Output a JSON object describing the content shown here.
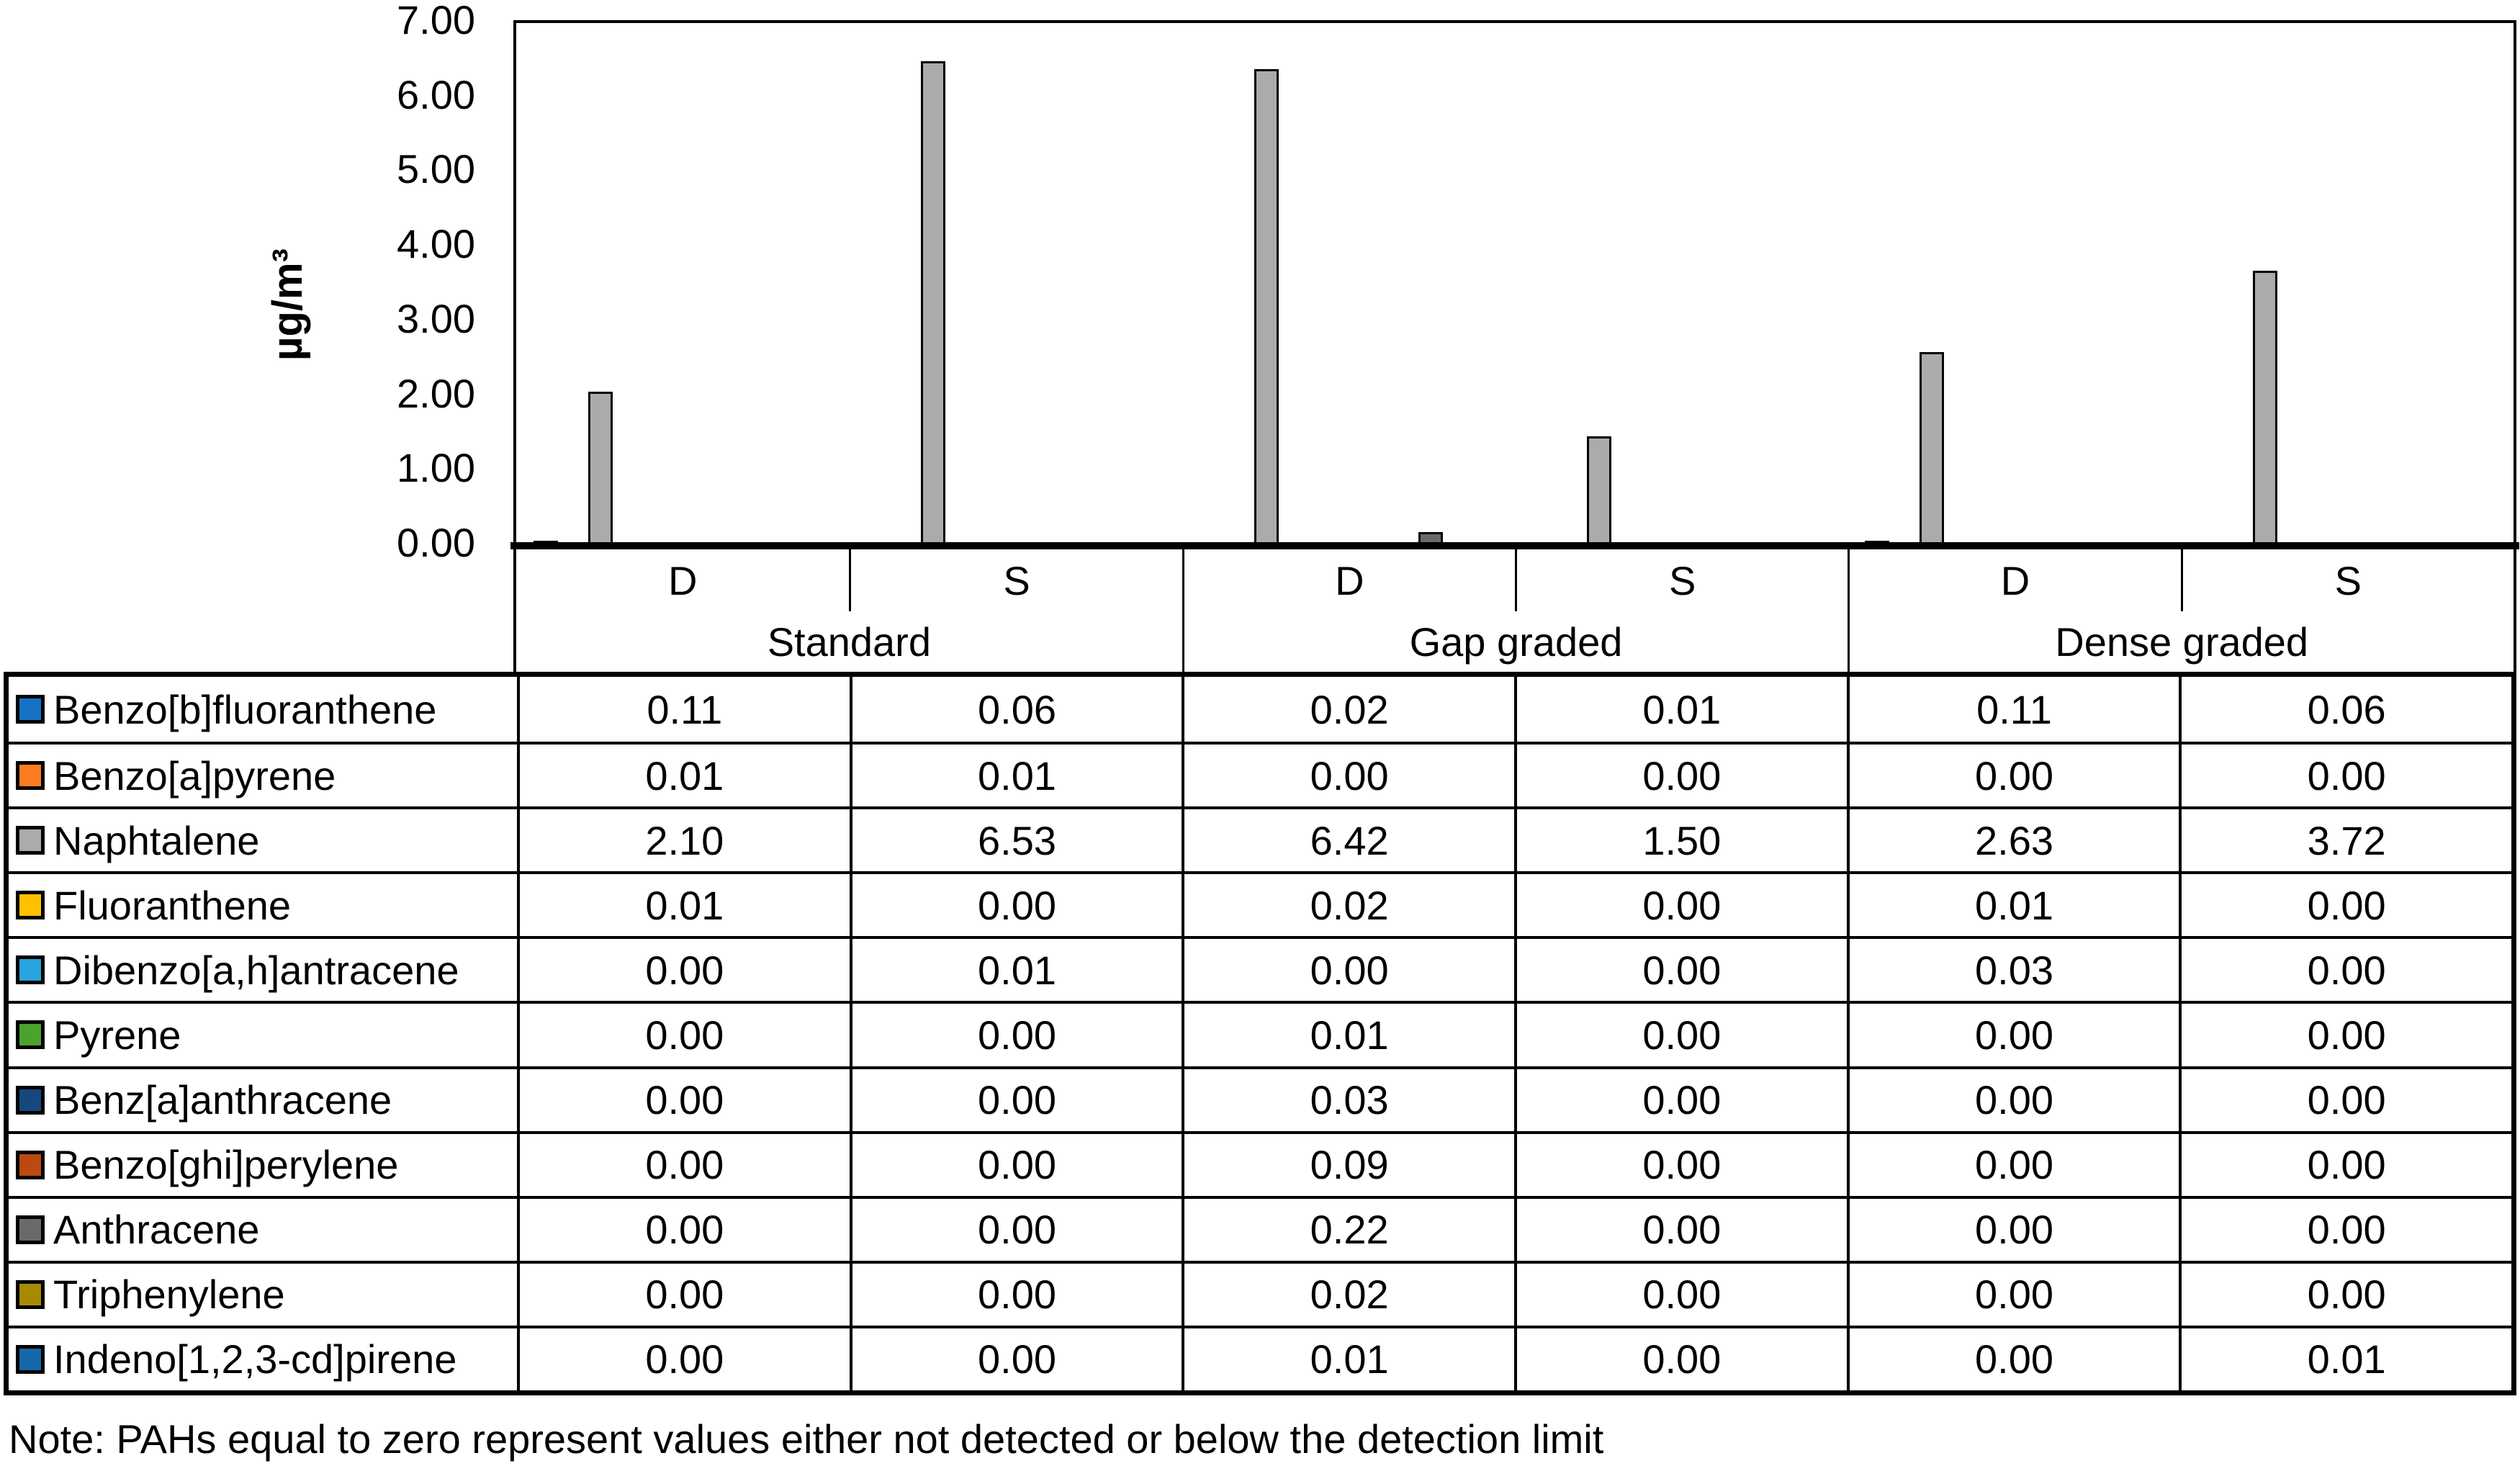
{
  "note": "Note: PAHs equal to zero represent values either not detected or below the detection limit",
  "chart_data": {
    "type": "bar",
    "title": "",
    "ylabel": "µg/m³",
    "xlabel": "",
    "ylim": [
      0,
      7
    ],
    "grid": false,
    "legend_position": "table-left-column",
    "yticks": [
      "7.00",
      "6.00",
      "5.00",
      "4.00",
      "3.00",
      "2.00",
      "1.00",
      "0.00"
    ],
    "condition_labels": [
      "D",
      "S",
      "D",
      "S",
      "D",
      "S"
    ],
    "pavement_labels": [
      "Standard",
      "Gap graded",
      "Dense graded"
    ],
    "value_decimals": 2,
    "series": [
      {
        "name": "Benzo[b]fluoranthene",
        "color": "#1572C6",
        "values": [
          0.11,
          0.06,
          0.02,
          0.01,
          0.11,
          0.06
        ]
      },
      {
        "name": "Benzo[a]pyrene",
        "color": "#F97D1E",
        "values": [
          0.01,
          0.01,
          0.0,
          0.0,
          0.0,
          0.0
        ]
      },
      {
        "name": "Naphtalene",
        "color": "#ABABAB",
        "values": [
          2.1,
          6.53,
          6.42,
          1.5,
          2.63,
          3.72
        ]
      },
      {
        "name": "Fluoranthene",
        "color": "#FFC000",
        "values": [
          0.01,
          0.0,
          0.02,
          0.0,
          0.01,
          0.0
        ]
      },
      {
        "name": "Dibenzo[a,h]antracene",
        "color": "#2AA4DE",
        "values": [
          0.0,
          0.01,
          0.0,
          0.0,
          0.03,
          0.0
        ]
      },
      {
        "name": "Pyrene",
        "color": "#4BA32E",
        "values": [
          0.0,
          0.0,
          0.01,
          0.0,
          0.0,
          0.0
        ]
      },
      {
        "name": "Benz[a]anthracene",
        "color": "#15497E",
        "values": [
          0.0,
          0.0,
          0.03,
          0.0,
          0.0,
          0.0
        ]
      },
      {
        "name": "Benzo[ghi]perylene",
        "color": "#BC4A10",
        "values": [
          0.0,
          0.0,
          0.09,
          0.0,
          0.0,
          0.0
        ]
      },
      {
        "name": "Anthracene",
        "color": "#6A6A6A",
        "values": [
          0.0,
          0.0,
          0.22,
          0.0,
          0.0,
          0.0
        ]
      },
      {
        "name": "Triphenylene",
        "color": "#A88A00",
        "values": [
          0.0,
          0.0,
          0.02,
          0.0,
          0.0,
          0.0
        ]
      },
      {
        "name": "Indeno[1,2,3-cd]pirene",
        "color": "#1668A8",
        "values": [
          0.0,
          0.0,
          0.01,
          0.0,
          0.0,
          0.01
        ]
      }
    ]
  }
}
